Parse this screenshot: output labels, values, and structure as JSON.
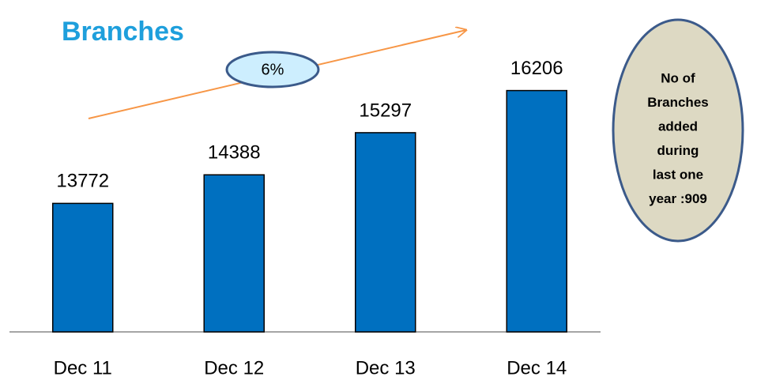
{
  "chart_data": {
    "type": "bar",
    "title": "Branches",
    "categories": [
      "Dec 11",
      "Dec 12",
      "Dec 13",
      "Dec 14"
    ],
    "values": [
      13772,
      14388,
      15297,
      16206
    ],
    "color": "#0070c0",
    "ylim": [
      11000,
      17000
    ],
    "growth_label": "6%",
    "note_lines": [
      "No of",
      "Branches",
      "added",
      "during",
      "last one",
      "year :909"
    ]
  }
}
